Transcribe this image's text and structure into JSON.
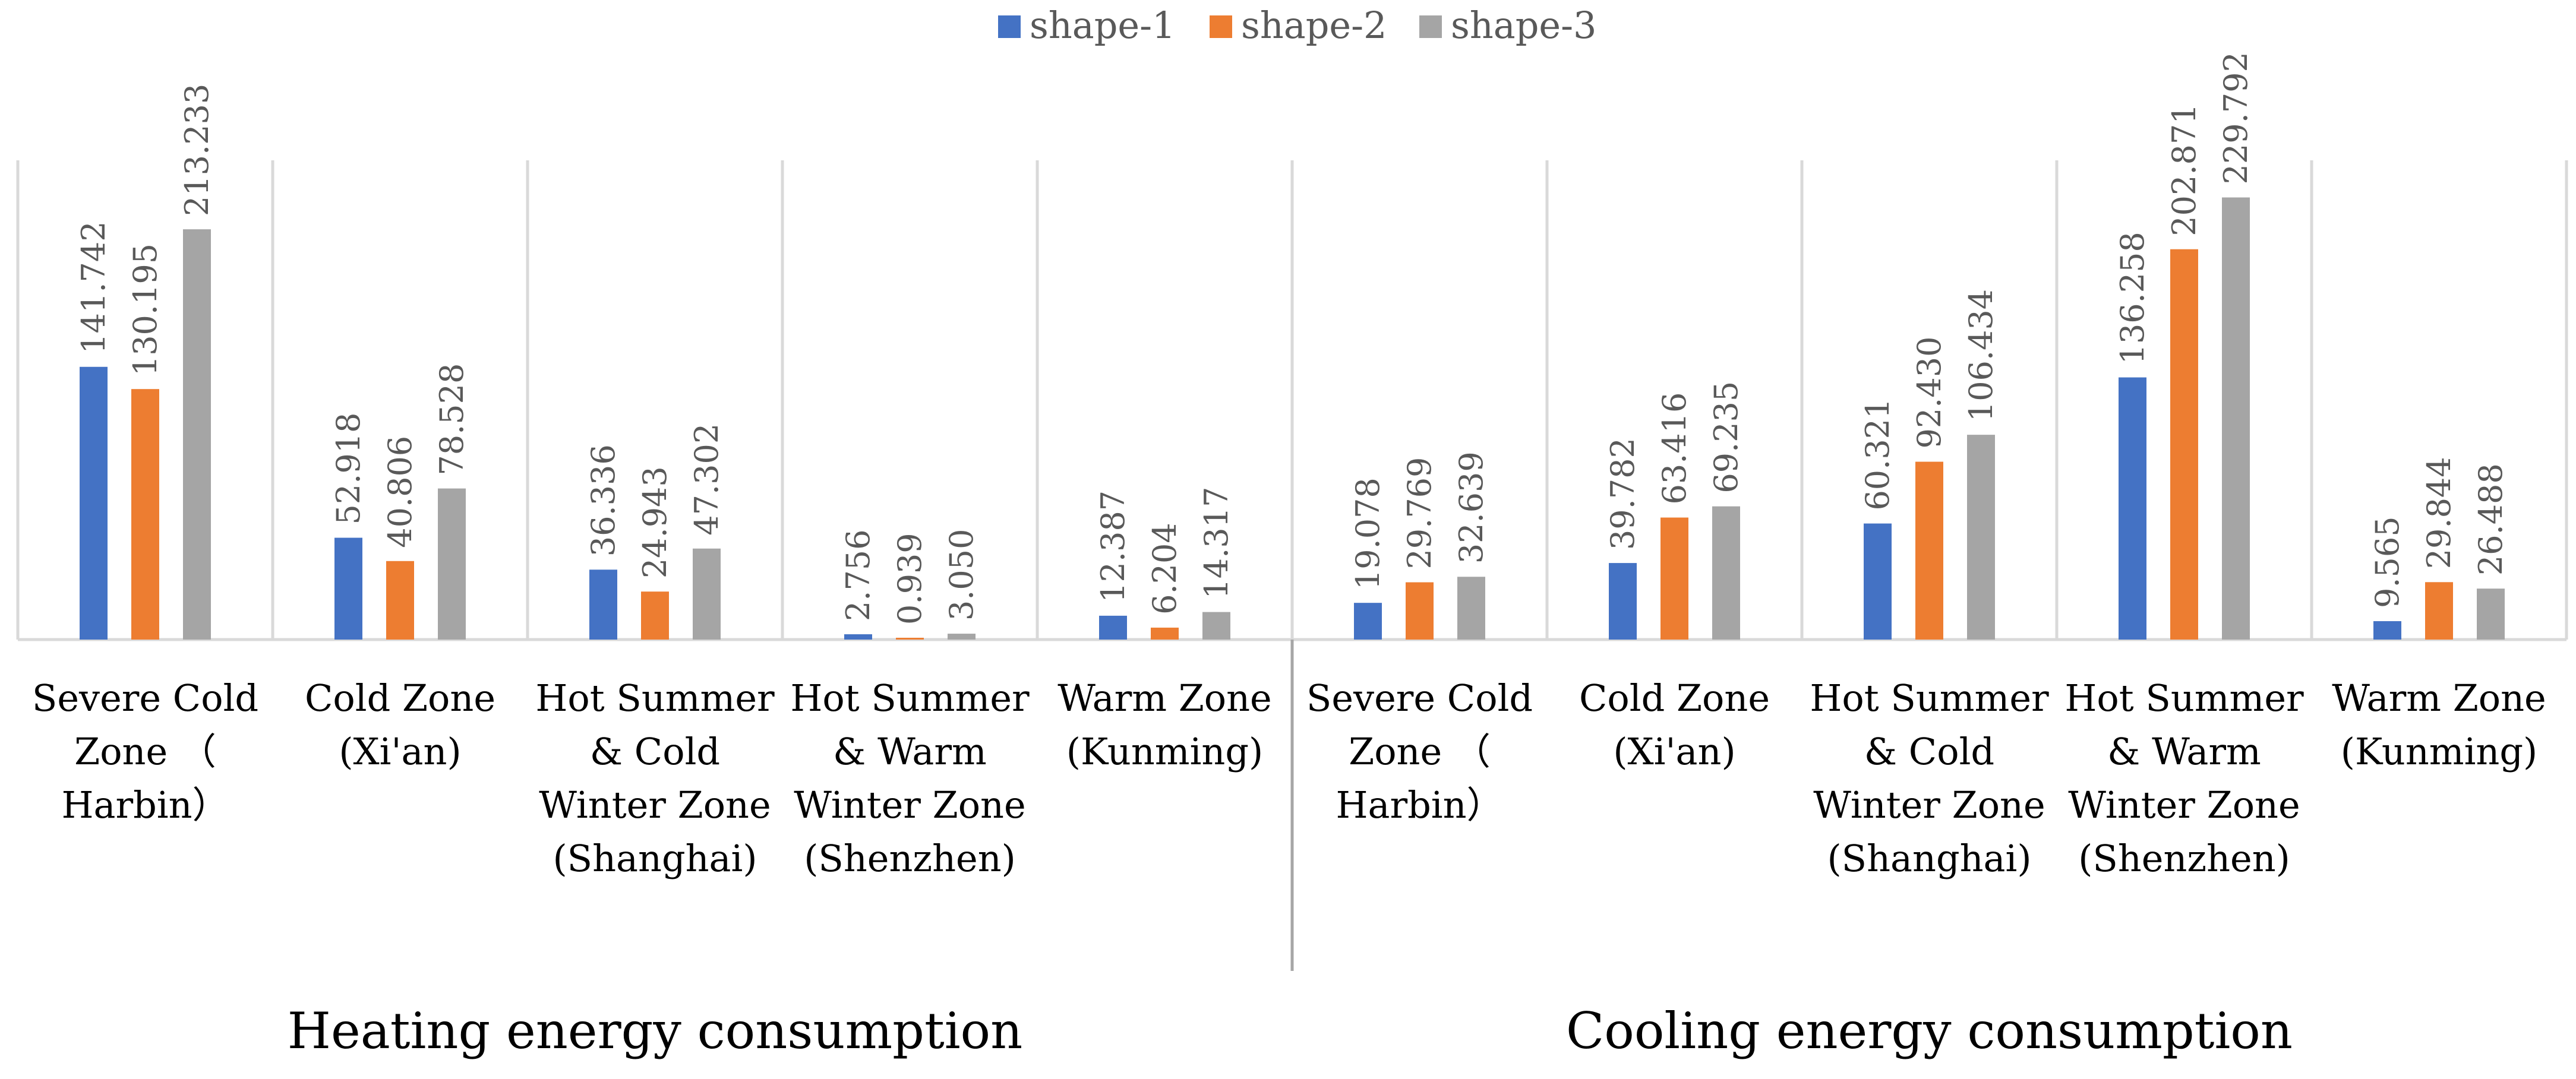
{
  "chart_data": {
    "type": "bar",
    "title": "",
    "xlabel": "",
    "ylabel": "",
    "ylim": [
      0,
      260
    ],
    "grid": false,
    "legend_position": "top-center",
    "series": [
      {
        "name": "shape-1",
        "color": "#4472C4",
        "values": [
          141.742,
          52.918,
          36.336,
          2.756,
          12.387,
          19.078,
          39.782,
          60.321,
          136.258,
          9.565
        ],
        "labels": [
          "141.742",
          "52.918",
          "36.336",
          "2.756",
          "12.387",
          "19.078",
          "39.782",
          "60.321",
          "136.258",
          "9.565"
        ]
      },
      {
        "name": "shape-2",
        "color": "#ED7D31",
        "values": [
          130.195,
          40.806,
          24.943,
          0.939,
          6.204,
          29.769,
          63.416,
          92.43,
          202.871,
          29.844
        ],
        "labels": [
          "130.195",
          "40.806",
          "24.943",
          "0.939",
          "6.204",
          "29.769",
          "63.416",
          "92.430",
          "202.871",
          "29.844"
        ]
      },
      {
        "name": "shape-3",
        "color": "#A5A5A5",
        "values": [
          213.233,
          78.528,
          47.302,
          3.05,
          14.317,
          32.639,
          69.235,
          106.434,
          229.792,
          26.488
        ],
        "labels": [
          "213.233",
          "78.528",
          "47.302",
          "3.050",
          "14.317",
          "32.639",
          "69.235",
          "106.434",
          "229.792",
          "26.488"
        ]
      }
    ],
    "categories": [
      [
        "Severe Cold",
        "Zone （",
        "Harbin）"
      ],
      [
        "Cold Zone",
        "(Xi'an)"
      ],
      [
        "Hot Summer",
        "& Cold",
        "Winter Zone",
        "(Shanghai)"
      ],
      [
        "Hot Summer",
        "& Warm",
        "Winter Zone",
        "(Shenzhen)"
      ],
      [
        "Warm Zone",
        "(Kunming)"
      ],
      [
        "Severe Cold",
        "Zone （",
        "Harbin）"
      ],
      [
        "Cold Zone",
        "(Xi'an)"
      ],
      [
        "Hot Summer",
        "& Cold",
        "Winter Zone",
        "(Shanghai)"
      ],
      [
        "Hot Summer",
        "& Warm",
        "Winter Zone",
        "(Shenzhen)"
      ],
      [
        "Warm Zone",
        "(Kunming)"
      ]
    ],
    "groups": [
      {
        "label": "Heating energy consumption",
        "span": [
          0,
          4
        ]
      },
      {
        "label": "Cooling energy consumption",
        "span": [
          5,
          9
        ]
      }
    ]
  }
}
